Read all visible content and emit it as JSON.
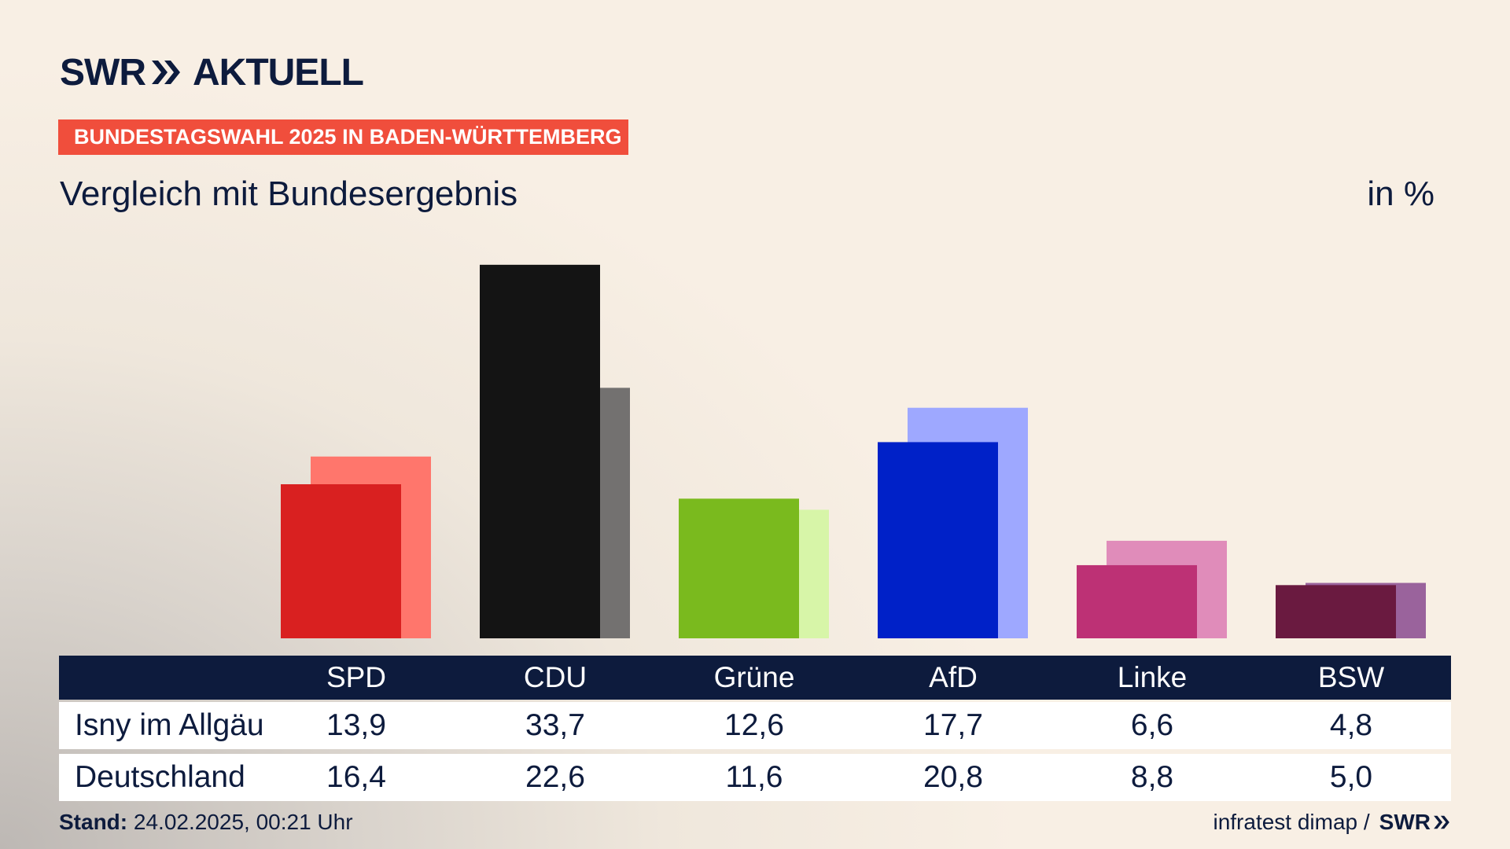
{
  "logo": {
    "brand": "SWR",
    "product": "AKTUELL"
  },
  "tag": "BUNDESTAGSWAHL 2025 IN BADEN-WÜRTTEMBERG",
  "subtitle": "Vergleich mit Bundesergebnis",
  "unit": "in %",
  "chart_data": {
    "type": "bar",
    "categories": [
      "SPD",
      "CDU",
      "Grüne",
      "AfD",
      "Linke",
      "BSW"
    ],
    "series": [
      {
        "name": "Isny im Allgäu",
        "values": [
          13.9,
          33.7,
          12.6,
          17.7,
          6.6,
          4.8
        ]
      },
      {
        "name": "Deutschland",
        "values": [
          16.4,
          22.6,
          11.6,
          20.8,
          8.8,
          5.0
        ]
      }
    ],
    "colors_primary": [
      "#d92020",
      "#141414",
      "#7aba1e",
      "#0021c8",
      "#bd3175",
      "#6a1a40"
    ],
    "colors_secondary": [
      "#ff766c",
      "#737170",
      "#d7f5a8",
      "#9ea8ff",
      "#e08cba",
      "#9a639c"
    ],
    "ylim": [
      0,
      35
    ],
    "grid": false,
    "legend": "table-below"
  },
  "table": {
    "headers": [
      "SPD",
      "CDU",
      "Grüne",
      "AfD",
      "Linke",
      "BSW"
    ],
    "rows": [
      {
        "label": "Isny im Allgäu",
        "values": [
          "13,9",
          "33,7",
          "12,6",
          "17,7",
          "6,6",
          "4,8"
        ]
      },
      {
        "label": "Deutschland",
        "values": [
          "16,4",
          "22,6",
          "11,6",
          "20,8",
          "8,8",
          "5,0"
        ]
      }
    ]
  },
  "footer": {
    "stand_label": "Stand:",
    "stand_value": "24.02.2025, 00:21 Uhr",
    "source": "infratest dimap /",
    "source_logo": "SWR"
  }
}
